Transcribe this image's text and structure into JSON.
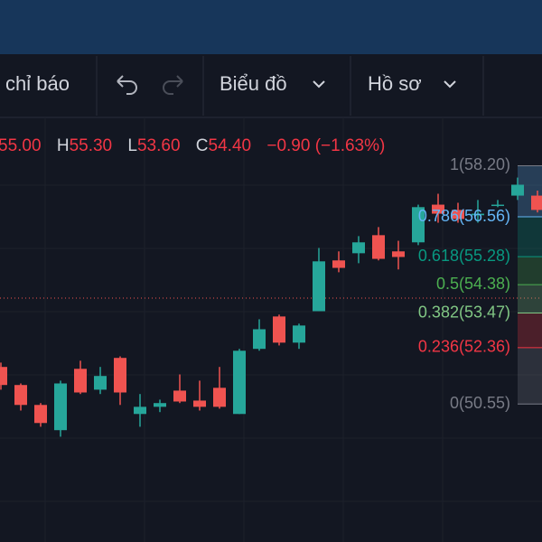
{
  "toolbar": {
    "indicators": "chỉ báo",
    "chart": "Biểu đồ",
    "profile": "Hồ sơ"
  },
  "legend": {
    "open": "55.00",
    "high_letter": "H",
    "high": "55.30",
    "low_letter": "L",
    "low": "53.60",
    "close_letter": "C",
    "close": "54.40",
    "change": "−0.90 (−1.63%)"
  },
  "chart_data": {
    "type": "candlestick",
    "up_color": "#26a69a",
    "down_color": "#ef5350",
    "ylim": [
      48.73,
      59.75
    ],
    "candles": [
      [
        51.74,
        51.88,
        51.01,
        51.16
      ],
      [
        51.16,
        51.21,
        50.34,
        50.52
      ],
      [
        50.52,
        50.58,
        49.82,
        49.94
      ],
      [
        49.71,
        51.3,
        49.5,
        51.21
      ],
      [
        51.68,
        51.94,
        50.87,
        50.92
      ],
      [
        51.01,
        51.74,
        50.87,
        51.45
      ],
      [
        52.03,
        52.08,
        50.52,
        50.92
      ],
      [
        50.23,
        50.87,
        49.82,
        50.46
      ],
      [
        50.46,
        50.69,
        50.29,
        50.58
      ],
      [
        50.98,
        51.5,
        50.58,
        50.63
      ],
      [
        50.66,
        51.3,
        50.34,
        50.46
      ],
      [
        51.07,
        51.74,
        50.4,
        50.46
      ],
      [
        50.23,
        52.32,
        50.23,
        52.26
      ],
      [
        52.32,
        53.27,
        52.26,
        52.95
      ],
      [
        53.36,
        53.42,
        52.43,
        52.52
      ],
      [
        52.52,
        53.13,
        52.32,
        53.07
      ],
      [
        53.53,
        55.56,
        53.53,
        55.13
      ],
      [
        55.16,
        55.45,
        54.78,
        54.92
      ],
      [
        55.39,
        55.94,
        55.07,
        55.74
      ],
      [
        55.97,
        56.23,
        55.16,
        55.21
      ],
      [
        55.45,
        55.79,
        54.87,
        55.27
      ],
      [
        55.74,
        56.95,
        55.65,
        56.87
      ],
      [
        56.95,
        57.3,
        56.37,
        56.66
      ],
      [
        56.78,
        57.01,
        56.37,
        56.49
      ],
      [
        56.61,
        57.1,
        56.37,
        56.66
      ],
      [
        56.92,
        57.1,
        56.87,
        56.95
      ],
      [
        57.24,
        57.82,
        57.1,
        57.59
      ],
      [
        57.24,
        57.4,
        56.7,
        56.78
      ]
    ],
    "fib_levels": [
      {
        "label": "1(58.20)",
        "value": 58.2,
        "color": "#787b86"
      },
      {
        "label": "0.786(56.56)",
        "value": 56.56,
        "color": "#64b5f6"
      },
      {
        "label": "0.618(55.28)",
        "value": 55.28,
        "color": "#089981"
      },
      {
        "label": "0.5(54.38)",
        "value": 54.38,
        "color": "#4caf50"
      },
      {
        "label": "0.382(53.47)",
        "value": 53.47,
        "color": "#81c784"
      },
      {
        "label": "0.236(52.36)",
        "value": 52.36,
        "color": "#f23645"
      },
      {
        "label": "0(50.55)",
        "value": 50.55,
        "color": "#787b86"
      }
    ]
  }
}
